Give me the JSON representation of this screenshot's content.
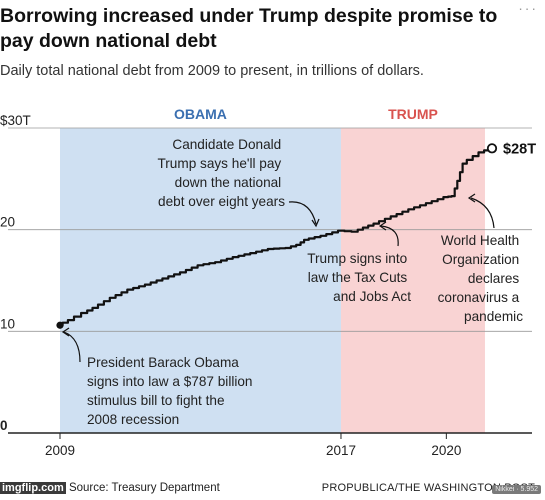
{
  "title": "Borrowing increased under Trump despite promise to pay down national debt",
  "subtitle": "Daily total national debt from 2009 to present, in trillions of dollars.",
  "source": "Source: Treasury Department",
  "watermark": "imgflip.com",
  "credit": "PROPUBLICA/THE WASHINGTON POST",
  "badge": "Nikkei · 5.952",
  "colors": {
    "obama_band": "#cfe0f2",
    "trump_band": "#f9d3d3",
    "obama_label": "#3a6fb0",
    "trump_label": "#d9534f",
    "line": "#111111"
  },
  "chart_data": {
    "type": "line",
    "title": "Borrowing increased under Trump despite promise to pay down national debt",
    "ylabel": "",
    "xlabel": "",
    "ylim": [
      0,
      30
    ],
    "xlim": [
      2009,
      2023
    ],
    "x_ticks": [
      "2009",
      "2017",
      "2020"
    ],
    "y_ticks": [
      "$30T",
      "20",
      "10",
      "0"
    ],
    "y_tick_values": [
      30,
      20,
      10,
      0
    ],
    "bands": [
      {
        "label": "OBAMA",
        "from": 2009,
        "to": 2017
      },
      {
        "label": "TRUMP",
        "from": 2017,
        "to": 2021.1
      }
    ],
    "series": [
      {
        "name": "",
        "x": [
          2009.0,
          2009.3,
          2009.7,
          2010.0,
          2010.5,
          2011.0,
          2011.5,
          2012.0,
          2012.5,
          2013.0,
          2013.5,
          2014.0,
          2014.5,
          2015.0,
          2015.5,
          2015.8,
          2016.0,
          2016.5,
          2017.0,
          2017.4,
          2017.7,
          2018.0,
          2018.5,
          2019.0,
          2019.5,
          2020.0,
          2020.2,
          2020.35,
          2020.5,
          2021.0,
          2021.3
        ],
        "y": [
          10.6,
          11.1,
          11.8,
          12.3,
          13.3,
          14.1,
          14.6,
          15.2,
          15.8,
          16.5,
          16.8,
          17.3,
          17.7,
          18.1,
          18.2,
          18.5,
          19.0,
          19.4,
          19.9,
          19.8,
          20.2,
          20.6,
          21.3,
          22.0,
          22.6,
          23.2,
          23.3,
          24.8,
          26.5,
          27.6,
          28.0
        ]
      }
    ],
    "end_label": "$28T",
    "annotations": [
      {
        "text": "Candidate Donald Trump says he'll pay down the national debt over eight years"
      },
      {
        "text": "Trump signs into law the Tax Cuts and Jobs Act"
      },
      {
        "text": "World Health Organization declares coronavirus a pandemic"
      },
      {
        "text": "President Barack Obama signs into law a $787 billion stimulus bill to fight the 2008 recession"
      }
    ]
  }
}
